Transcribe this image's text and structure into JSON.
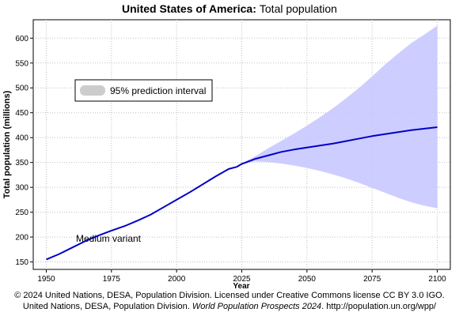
{
  "title": {
    "country": "United States of America",
    "sep": ":",
    "subject": "Total population"
  },
  "credits": {
    "line1": "© 2024 United Nations, DESA, Population Division. Licensed under Creative Commons license CC BY 3.0 IGO.",
    "line2_pre": "United Nations, DESA, Population Division.",
    "line2_title": "World Population Prospects 2024",
    "line2_post": ". http://population.un.org/wpp/"
  },
  "chart_data": {
    "type": "line",
    "xlabel": "Year",
    "ylabel": "Total population (millions)",
    "xlim": [
      1945,
      2105
    ],
    "ylim": [
      135,
      637
    ],
    "xticks": [
      1950,
      1975,
      2000,
      2025,
      2050,
      2075,
      2100
    ],
    "yticks": [
      150,
      200,
      250,
      300,
      350,
      400,
      450,
      500,
      550,
      600
    ],
    "grid": true,
    "legend": {
      "placement": "top-left",
      "entries": [
        "95% prediction interval"
      ]
    },
    "annotation": "Medium variant",
    "colors": {
      "line": "#0000c8",
      "band": "#c8c8ff",
      "legend_swatch": "#cccccc",
      "grid": "#bfbfbf"
    },
    "series": [
      {
        "name": "Medium variant",
        "x": [
          1950,
          1955,
          1960,
          1965,
          1970,
          1975,
          1980,
          1985,
          1990,
          1995,
          2000,
          2005,
          2010,
          2015,
          2020,
          2023,
          2025,
          2030,
          2035,
          2040,
          2045,
          2050,
          2055,
          2060,
          2065,
          2070,
          2075,
          2080,
          2085,
          2090,
          2095,
          2100
        ],
        "values": [
          155,
          166,
          179,
          192,
          203,
          213,
          222,
          233,
          245,
          260,
          275,
          290,
          306,
          322,
          337,
          341,
          347,
          357,
          364,
          371,
          376,
          380,
          384,
          388,
          393,
          398,
          403,
          407,
          411,
          415,
          418,
          421
        ]
      },
      {
        "name": "95% prediction interval",
        "x": [
          2023,
          2025,
          2030,
          2035,
          2040,
          2045,
          2050,
          2055,
          2060,
          2065,
          2070,
          2075,
          2080,
          2085,
          2090,
          2095,
          2100
        ],
        "lower": [
          341,
          346,
          352,
          351,
          348,
          344,
          339,
          333,
          326,
          318,
          309,
          299,
          289,
          279,
          270,
          263,
          258
        ],
        "upper": [
          341,
          348,
          362,
          378,
          393,
          408,
          424,
          441,
          459,
          479,
          500,
          523,
          547,
          569,
          590,
          607,
          625
        ]
      }
    ]
  }
}
